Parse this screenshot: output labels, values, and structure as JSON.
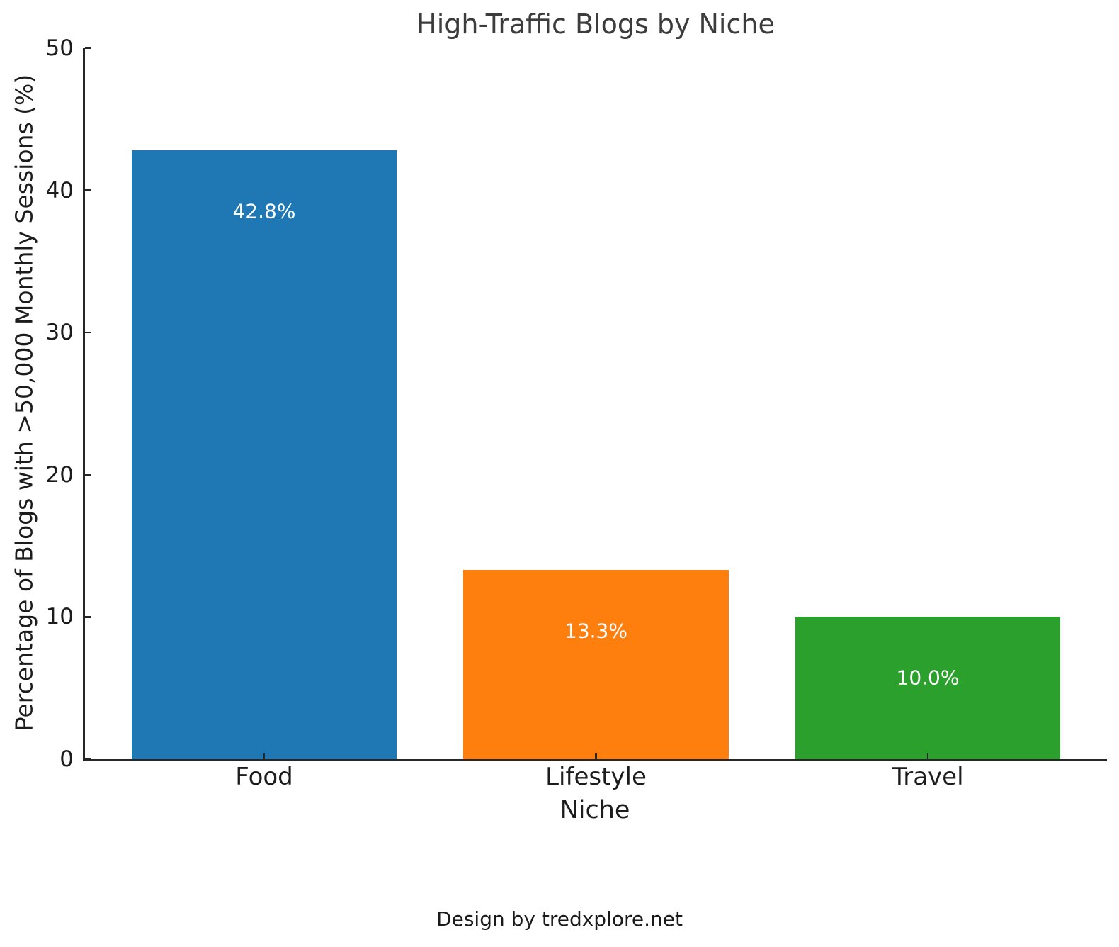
{
  "title": "High-Traffic Blogs by Niche",
  "footer": "Design by tredxplore.net",
  "chart_data": {
    "type": "bar",
    "categories": [
      "Food",
      "Lifestyle",
      "Travel"
    ],
    "values": [
      42.8,
      13.3,
      10.0
    ],
    "value_labels": [
      "42.8%",
      "13.3%",
      "10.0%"
    ],
    "bar_colors": [
      "#1f77b4",
      "#ff7f0e",
      "#2ca02c"
    ],
    "title": "High-Traffic Blogs by Niche",
    "xlabel": "Niche",
    "ylabel": "Percentage of Blogs with >50,000 Monthly Sessions (%)",
    "ylim": [
      0,
      50
    ],
    "yticks": [
      0,
      10,
      20,
      30,
      40,
      50
    ],
    "grid": false,
    "legend": null,
    "bar_width_units": 0.8,
    "xlim_units": [
      -0.54,
      2.54
    ]
  }
}
